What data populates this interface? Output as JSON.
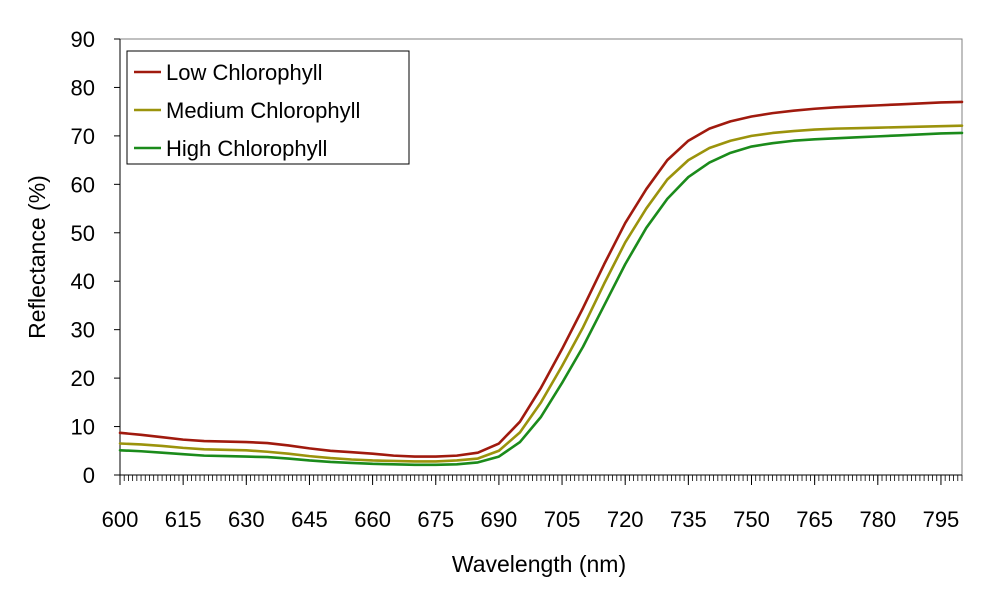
{
  "chart_data": {
    "type": "line",
    "title": "",
    "xlabel": "Wavelength (nm)",
    "ylabel": "Reflectance (%)",
    "xlim": [
      600,
      800
    ],
    "ylim": [
      0,
      90
    ],
    "x_ticks": [
      600,
      615,
      630,
      645,
      660,
      675,
      690,
      705,
      720,
      735,
      750,
      765,
      780,
      795
    ],
    "y_ticks": [
      0,
      10,
      20,
      30,
      40,
      50,
      60,
      70,
      80,
      90
    ],
    "grid": false,
    "legend": "top-left",
    "x": [
      600,
      605,
      610,
      615,
      620,
      625,
      630,
      635,
      640,
      645,
      650,
      655,
      660,
      665,
      670,
      675,
      680,
      685,
      690,
      695,
      700,
      705,
      710,
      715,
      720,
      725,
      730,
      735,
      740,
      745,
      750,
      755,
      760,
      765,
      770,
      775,
      780,
      785,
      790,
      795,
      800
    ],
    "series": [
      {
        "name": "Low Chlorophyll",
        "color": "#a01a0e",
        "values": [
          8.7,
          8.3,
          7.8,
          7.3,
          7.0,
          6.9,
          6.8,
          6.6,
          6.1,
          5.5,
          5.0,
          4.7,
          4.4,
          4.0,
          3.8,
          3.8,
          4.0,
          4.6,
          6.5,
          11.0,
          18.0,
          26.0,
          34.5,
          43.5,
          52.0,
          59.0,
          65.0,
          69.0,
          71.5,
          73.0,
          74.0,
          74.7,
          75.2,
          75.6,
          75.9,
          76.1,
          76.3,
          76.5,
          76.7,
          76.9,
          77.0
        ]
      },
      {
        "name": "Medium Chlorophyll",
        "color": "#9b930c",
        "values": [
          6.5,
          6.3,
          6.0,
          5.6,
          5.3,
          5.2,
          5.1,
          4.8,
          4.4,
          3.9,
          3.5,
          3.2,
          3.0,
          2.9,
          2.8,
          2.8,
          3.0,
          3.4,
          5.0,
          8.8,
          15.0,
          22.5,
          30.5,
          39.5,
          48.0,
          55.0,
          61.0,
          65.0,
          67.5,
          69.0,
          70.0,
          70.6,
          71.0,
          71.3,
          71.5,
          71.6,
          71.7,
          71.8,
          71.9,
          72.0,
          72.1
        ]
      },
      {
        "name": "High Chlorophyll",
        "color": "#1b8b1b",
        "values": [
          5.1,
          4.9,
          4.6,
          4.3,
          4.0,
          3.9,
          3.8,
          3.7,
          3.4,
          3.0,
          2.7,
          2.5,
          2.3,
          2.2,
          2.1,
          2.1,
          2.2,
          2.6,
          3.8,
          6.8,
          12.0,
          19.0,
          26.5,
          35.0,
          43.5,
          51.0,
          57.0,
          61.5,
          64.5,
          66.5,
          67.8,
          68.5,
          69.0,
          69.3,
          69.5,
          69.7,
          69.9,
          70.1,
          70.3,
          70.5,
          70.6
        ]
      }
    ]
  }
}
